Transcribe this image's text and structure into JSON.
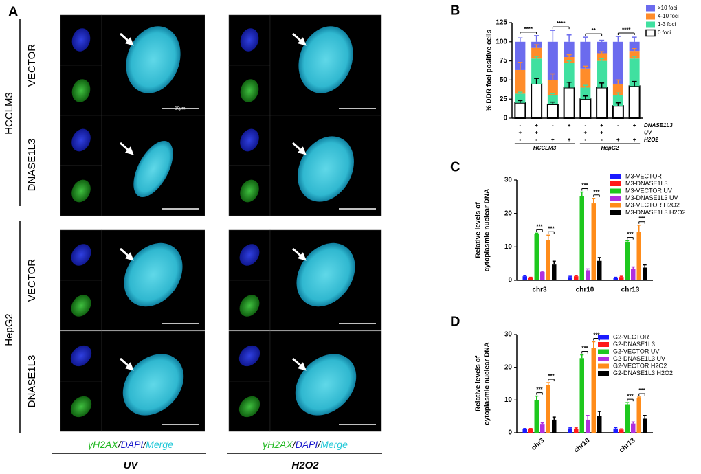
{
  "panel_a": {
    "panel": "A",
    "cell_lines": [
      "HCCLM3",
      "HepG2"
    ],
    "rows": [
      "VECTOR",
      "DNASE1L3",
      "VECTOR",
      "DNASE1L3"
    ],
    "scale_label": "10μm",
    "stain_legend": [
      {
        "text": "γH2AX",
        "color": "#22b822"
      },
      {
        "text": "/",
        "color": "#000000"
      },
      {
        "text": "DAPI",
        "color": "#1a1acc"
      },
      {
        "text": "/",
        "color": "#000000"
      },
      {
        "text": "Merge",
        "color": "#22c8d8"
      }
    ],
    "treatments": [
      "UV",
      "H2O2"
    ]
  },
  "chart_data": [
    {
      "type": "stacked_bar",
      "panel": "B",
      "ylabel": "% DDR foci positive cells",
      "ylim": [
        0,
        125
      ],
      "yticks": [
        0,
        25,
        50,
        75,
        100,
        125
      ],
      "categories": [
        null,
        null,
        null,
        null,
        null,
        null,
        null,
        null
      ],
      "series": [
        {
          "name": "0 foci",
          "color": "#ffffff",
          "values": [
            20,
            45,
            18,
            40,
            25,
            40,
            16,
            42
          ],
          "errors": [
            3,
            7,
            3,
            7,
            4,
            6,
            4,
            6
          ]
        },
        {
          "name": "1-3 foci",
          "color": "#40e0a0",
          "values": [
            12,
            33,
            12,
            32,
            15,
            35,
            14,
            36
          ],
          "errors": [
            2,
            3,
            2,
            3,
            3,
            3,
            3,
            3
          ]
        },
        {
          "name": "4-10 foci",
          "color": "#ff8c2a",
          "values": [
            31,
            14,
            20,
            8,
            25,
            10,
            15,
            10
          ],
          "errors": [
            10,
            4,
            8,
            3,
            3,
            2,
            5,
            3
          ]
        },
        {
          "name": ">10 foci",
          "color": "#6b6bee",
          "values": [
            37,
            8,
            50,
            20,
            35,
            15,
            55,
            12
          ],
          "errors": [
            5,
            8,
            15,
            9,
            6,
            2,
            7,
            6
          ]
        }
      ],
      "significance": [
        "****",
        "****",
        "**",
        "****"
      ],
      "conditions": [
        {
          "name": "DNASE1L3",
          "signs": [
            "-",
            "+",
            "-",
            "+",
            "-",
            "+",
            "-",
            "+"
          ]
        },
        {
          "name": "UV",
          "signs": [
            "+",
            "+",
            "-",
            "-",
            "+",
            "+",
            "-",
            "-"
          ]
        },
        {
          "name": "H2O2",
          "signs": [
            "-",
            "-",
            "+",
            "+",
            "-",
            "-",
            "+",
            "+"
          ]
        }
      ],
      "groups": [
        "HCCLM3",
        "HepG2"
      ]
    },
    {
      "type": "grouped_bar",
      "panel": "C",
      "ylabel": [
        "Relative levels of",
        "cytoplasmic nuclear DNA"
      ],
      "ylim": [
        0,
        30
      ],
      "yticks": [
        0,
        10,
        20,
        30
      ],
      "categories": [
        "chr3",
        "chr10",
        "chr13"
      ],
      "series": [
        {
          "name": "M3-VECTOR",
          "color": "#1a1aff",
          "values": [
            1.2,
            1.0,
            0.8
          ],
          "errors": [
            0.2,
            0.2,
            0.1
          ]
        },
        {
          "name": "M3-DNASE1L3",
          "color": "#ff1a1a",
          "values": [
            0.8,
            1.2,
            1.0
          ],
          "errors": [
            0.1,
            0.2,
            0.2
          ]
        },
        {
          "name": "M3-VECTOR UV",
          "color": "#1ec81e",
          "values": [
            13.8,
            25.2,
            11.3
          ],
          "errors": [
            0.3,
            1.2,
            0.5
          ]
        },
        {
          "name": "M3-DNASE1L3 UV",
          "color": "#b030e0",
          "values": [
            2.5,
            3.0,
            3.5
          ],
          "errors": [
            0.2,
            0.4,
            0.5
          ]
        },
        {
          "name": "M3-VECTOR H2O2",
          "color": "#ff8c1a",
          "values": [
            12.0,
            23.0,
            14.5
          ],
          "errors": [
            1.5,
            1.5,
            2.0
          ]
        },
        {
          "name": "M3-DNASE1L3 H2O2",
          "color": "#000000",
          "values": [
            4.7,
            5.8,
            3.8
          ],
          "errors": [
            1.0,
            1.0,
            0.8
          ]
        }
      ],
      "annotations": [
        "***",
        "***",
        "***",
        "***",
        "***",
        "***"
      ]
    },
    {
      "type": "grouped_bar",
      "panel": "D",
      "ylabel": [
        "Relative levels of",
        "cytoplasmic nuclear DNA"
      ],
      "ylim": [
        0,
        30
      ],
      "yticks": [
        0,
        10,
        20,
        30
      ],
      "categories": [
        "chr3",
        "chr10",
        "chr13"
      ],
      "series": [
        {
          "name": "G2-VECTOR",
          "color": "#1a1aff",
          "values": [
            1.2,
            1.3,
            1.3
          ],
          "errors": [
            0.1,
            0.2,
            0.3
          ]
        },
        {
          "name": "G2-DNASE1L3",
          "color": "#ff1a1a",
          "values": [
            1.2,
            1.2,
            1.0
          ],
          "errors": [
            0.1,
            0.3,
            0.2
          ]
        },
        {
          "name": "G2-VECTOR UV",
          "color": "#1ec81e",
          "values": [
            10.0,
            22.8,
            8.7
          ],
          "errors": [
            1.2,
            1.0,
            0.5
          ]
        },
        {
          "name": "G2-DNASE1L3 UV",
          "color": "#b030e0",
          "values": [
            2.7,
            4.0,
            2.8
          ],
          "errors": [
            0.3,
            1.3,
            0.5
          ]
        },
        {
          "name": "G2-VECTOR H2O2",
          "color": "#ff8c1a",
          "values": [
            14.6,
            26.0,
            10.5
          ],
          "errors": [
            0.7,
            1.8,
            0.4
          ]
        },
        {
          "name": "G2-DNASE1L3 H2O2",
          "color": "#000000",
          "values": [
            4.0,
            5.2,
            4.3
          ],
          "errors": [
            0.8,
            1.3,
            1.0
          ]
        }
      ],
      "annotations": [
        "***",
        "***",
        "***",
        "***",
        "***",
        "***"
      ]
    }
  ]
}
